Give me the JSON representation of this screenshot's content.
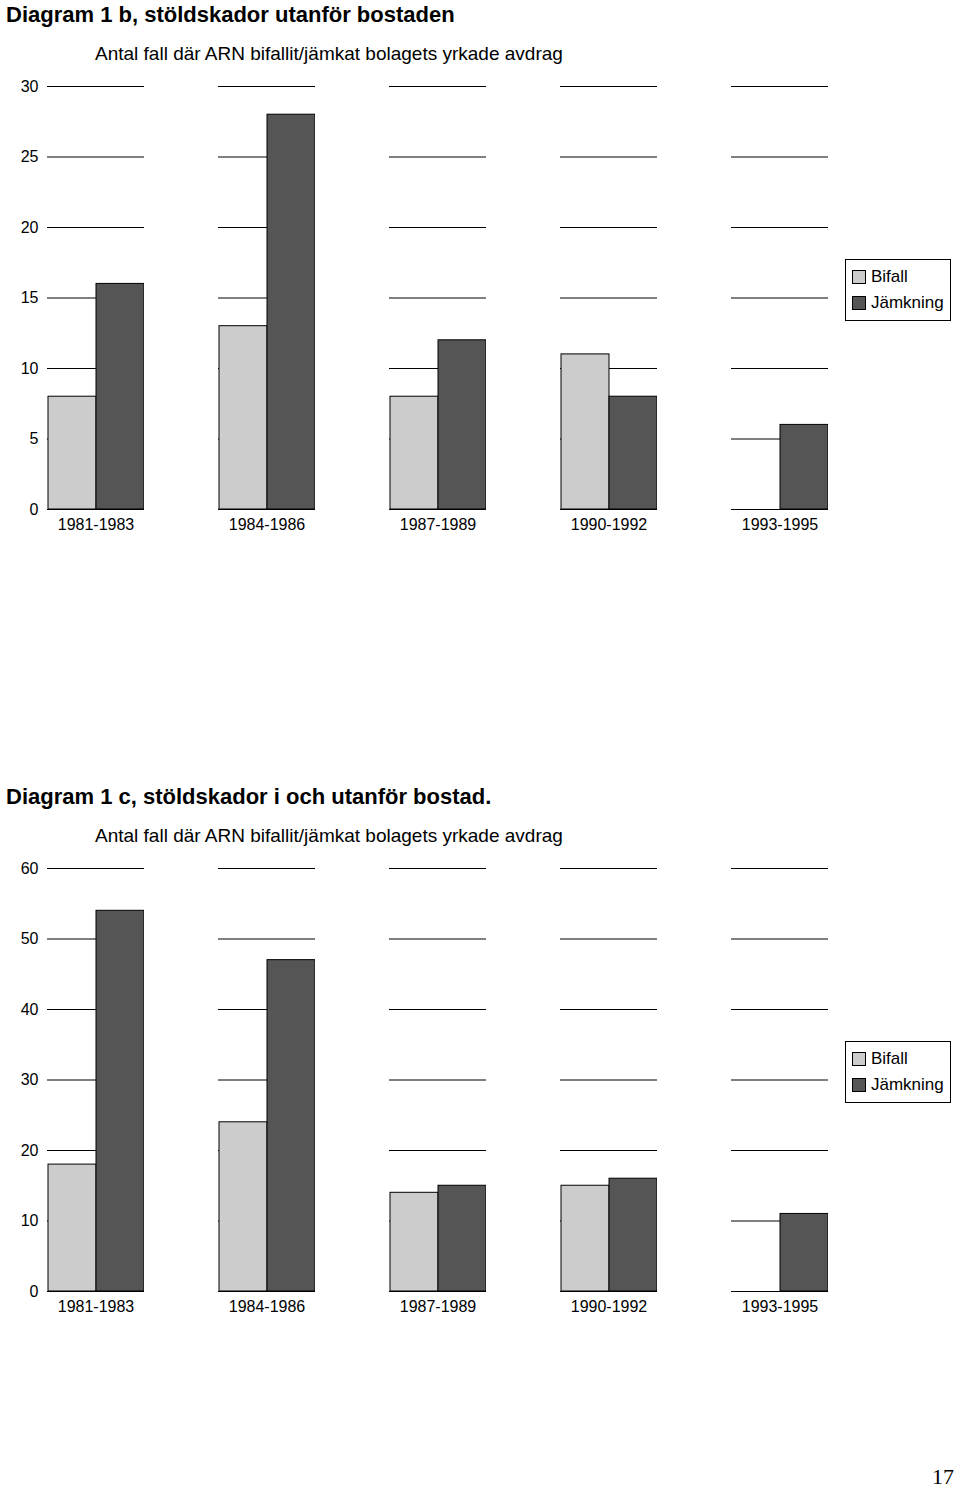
{
  "chart_data": [
    {
      "type": "bar",
      "title": "Diagram 1 b, stöldskador utanför bostaden",
      "subtitle": "Antal fall där ARN bifallit/jämkat bolagets yrkade avdrag",
      "categories": [
        "1981-1983",
        "1984-1986",
        "1987-1989",
        "1990-1992",
        "1993-1995"
      ],
      "series": [
        {
          "name": "Bifall",
          "color": "#cccccc",
          "values": [
            8,
            13,
            8,
            11,
            0
          ]
        },
        {
          "name": "Jämkning",
          "color": "#555555",
          "values": [
            16,
            28,
            12,
            8,
            6
          ]
        }
      ],
      "ylim": [
        0,
        30
      ],
      "yticks": [
        0,
        5,
        10,
        15,
        20,
        25,
        30
      ],
      "grid": true,
      "legend": "right"
    },
    {
      "type": "bar",
      "title": "Diagram 1 c, stöldskador i och utanför bostad.",
      "subtitle": "Antal fall där ARN bifallit/jämkat bolagets yrkade avdrag",
      "categories": [
        "1981-1983",
        "1984-1986",
        "1987-1989",
        "1990-1992",
        "1993-1995"
      ],
      "series": [
        {
          "name": "Bifall",
          "color": "#cccccc",
          "values": [
            18,
            24,
            14,
            15,
            0
          ]
        },
        {
          "name": "Jämkning",
          "color": "#555555",
          "values": [
            54,
            47,
            15,
            16,
            11
          ]
        }
      ],
      "ylim": [
        0,
        60
      ],
      "yticks": [
        0,
        10,
        20,
        30,
        40,
        50,
        60
      ],
      "grid": true,
      "legend": "right"
    }
  ],
  "page_number": "17"
}
